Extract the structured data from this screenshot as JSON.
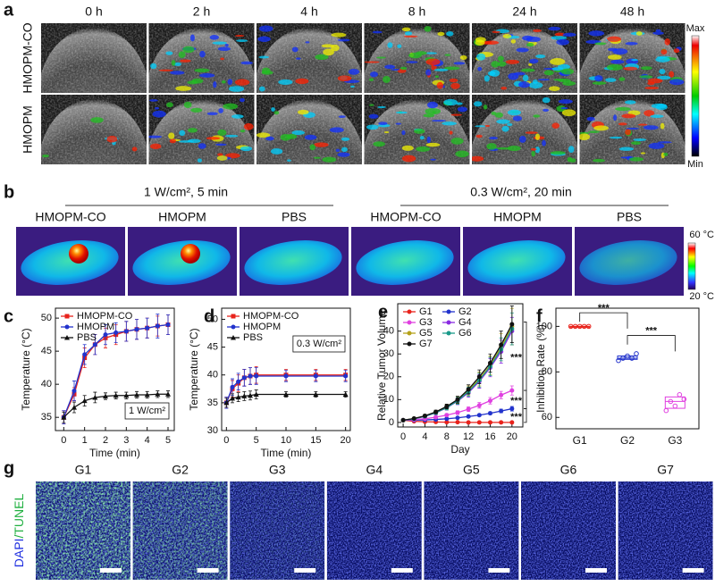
{
  "panel_a": {
    "label": "a",
    "columns": [
      "0 h",
      "2 h",
      "4 h",
      "8 h",
      "24 h",
      "48 h"
    ],
    "rows": [
      "HMOPM-CO",
      "HMOPM"
    ],
    "colorbar": {
      "max": "Max",
      "min": "Min"
    }
  },
  "panel_b": {
    "label": "b",
    "conditions": [
      {
        "title": "1 W/cm², 5 min",
        "groups": [
          "HMOPM-CO",
          "HMOPM",
          "PBS"
        ]
      },
      {
        "title": "0.3 W/cm², 20 min",
        "groups": [
          "HMOPM-CO",
          "HMOPM",
          "PBS"
        ]
      }
    ],
    "colorbar": {
      "max": "60 °C",
      "min": "20 °C"
    }
  },
  "panel_g": {
    "label": "g",
    "columns": [
      "G1",
      "G2",
      "G3",
      "G4",
      "G5",
      "G6",
      "G7"
    ],
    "stain": [
      "DAPI",
      "/TUNEL"
    ]
  },
  "chart_data": [
    {
      "type": "line",
      "panel_label": "c",
      "x_label": "Time (min)",
      "y_label": "Temperature (°C)",
      "x": [
        0,
        0.5,
        1,
        1.5,
        2,
        2.5,
        3,
        3.5,
        4,
        4.5,
        5
      ],
      "xlim": [
        -0.4,
        5.3
      ],
      "xticks": [
        0,
        1,
        2,
        3,
        4,
        5
      ],
      "ylim": [
        33,
        51.5
      ],
      "yticks": [
        35,
        40,
        45,
        50
      ],
      "legend": "upper left",
      "annotations": [
        "1 W/cm²"
      ],
      "series": [
        {
          "name": "HMOPM-CO",
          "color": "#e8221b",
          "marker": "square",
          "values": [
            35,
            38.5,
            44,
            46,
            47,
            47.5,
            48,
            48.3,
            48.5,
            48.8,
            49
          ],
          "errors": [
            1,
            1,
            1.5,
            1.5,
            1.5,
            1.5,
            1.5,
            1.5,
            1.5,
            1.5,
            1.5
          ]
        },
        {
          "name": "HMOPM",
          "color": "#2233cc",
          "marker": "circle",
          "values": [
            35,
            39,
            44.5,
            46,
            47.5,
            47.8,
            48,
            48.3,
            48.5,
            48.8,
            49
          ],
          "errors": [
            1,
            1.5,
            1.5,
            1.5,
            1.5,
            1.5,
            1.5,
            1.5,
            1.5,
            1.8,
            1.5
          ]
        },
        {
          "name": "PBS",
          "color": "#111111",
          "marker": "triangle",
          "values": [
            35,
            36.5,
            37.5,
            38,
            38.2,
            38.3,
            38.3,
            38.4,
            38.4,
            38.5,
            38.5
          ],
          "errors": [
            0.8,
            0.8,
            0.8,
            0.8,
            0.5,
            0.5,
            0.5,
            0.5,
            0.5,
            0.5,
            0.5
          ]
        }
      ]
    },
    {
      "type": "line",
      "panel_label": "d",
      "x_label": "Time (min)",
      "y_label": "Temperature (°C)",
      "x": [
        0,
        1,
        2,
        3,
        4,
        5,
        10,
        15,
        20
      ],
      "xlim": [
        -0.8,
        20.8
      ],
      "xticks": [
        0,
        5,
        10,
        15,
        20
      ],
      "ylim": [
        30,
        52
      ],
      "yticks": [
        30,
        35,
        40,
        45,
        50
      ],
      "legend": "upper left",
      "annotations": [
        "0.3 W/cm²"
      ],
      "series": [
        {
          "name": "HMOPM-CO",
          "color": "#e8221b",
          "marker": "square",
          "values": [
            35,
            37.5,
            38.5,
            39.5,
            39.8,
            40,
            40,
            40,
            40
          ],
          "errors": [
            1,
            1.5,
            1.5,
            1.5,
            1.5,
            1.5,
            1,
            1,
            1
          ]
        },
        {
          "name": "HMOPM",
          "color": "#2233cc",
          "marker": "circle",
          "values": [
            35,
            37.8,
            38.8,
            39.5,
            39.8,
            39.8,
            39.8,
            39.8,
            39.8
          ],
          "errors": [
            1,
            1.5,
            1.5,
            1.5,
            1.5,
            1.5,
            1,
            1,
            1
          ]
        },
        {
          "name": "PBS",
          "color": "#111111",
          "marker": "triangle",
          "values": [
            35,
            35.8,
            36,
            36.2,
            36.3,
            36.5,
            36.5,
            36.5,
            36.5
          ],
          "errors": [
            0.8,
            0.8,
            0.8,
            0.8,
            0.8,
            0.8,
            0.5,
            0.5,
            0.5
          ]
        }
      ]
    },
    {
      "type": "line",
      "panel_label": "e",
      "x_label": "Day",
      "y_label": "Relative Tumor Volume",
      "x": [
        0,
        2,
        4,
        6,
        8,
        10,
        12,
        14,
        16,
        18,
        20
      ],
      "xlim": [
        -1,
        22
      ],
      "xticks": [
        0,
        4,
        8,
        12,
        16,
        20
      ],
      "ylim": [
        -2,
        52
      ],
      "yticks": [
        0,
        10,
        20,
        30,
        40
      ],
      "legend": "upper left",
      "legend_columns": 2,
      "annotations": [
        "***",
        "***",
        "***"
      ],
      "series": [
        {
          "name": "G1",
          "color": "#e8221b",
          "marker": "circle",
          "values": [
            1,
            0.5,
            0.3,
            0.2,
            0.1,
            0.1,
            0,
            0,
            0,
            0,
            0
          ],
          "errors": [
            0.2,
            0.2,
            0.2,
            0.2,
            0.1,
            0.1,
            0,
            0,
            0,
            0,
            0
          ]
        },
        {
          "name": "G2",
          "color": "#2233cc",
          "marker": "circle",
          "values": [
            1,
            1,
            1.1,
            1.3,
            1.6,
            2,
            2.6,
            3.2,
            4,
            5,
            6
          ],
          "errors": [
            0.2,
            0.2,
            0.2,
            0.3,
            0.3,
            0.4,
            0.5,
            0.5,
            0.6,
            0.8,
            1
          ]
        },
        {
          "name": "G3",
          "color": "#e040e0",
          "marker": "circle",
          "values": [
            1,
            1.2,
            1.6,
            2.3,
            3.2,
            4.3,
            5.8,
            7.5,
            9.5,
            12,
            14
          ],
          "errors": [
            0.2,
            0.3,
            0.4,
            0.5,
            0.6,
            0.8,
            1,
            1.2,
            1.4,
            1.6,
            2
          ]
        },
        {
          "name": "G4",
          "color": "#8a2be2",
          "marker": "circle",
          "values": [
            1,
            1.6,
            2.6,
            4.2,
            6.4,
            9.3,
            13,
            18,
            24,
            31,
            40
          ],
          "errors": [
            0.2,
            0.4,
            0.6,
            0.8,
            1,
            1.5,
            2,
            3,
            4,
            5,
            6
          ]
        },
        {
          "name": "G5",
          "color": "#b5a21a",
          "marker": "circle",
          "values": [
            1,
            1.7,
            2.8,
            4.5,
            6.8,
            9.8,
            14,
            19,
            25,
            33,
            42
          ],
          "errors": [
            0.2,
            0.4,
            0.6,
            0.8,
            1,
            1.5,
            2,
            3,
            4,
            6,
            8
          ]
        },
        {
          "name": "G6",
          "color": "#1a9a8a",
          "marker": "circle",
          "values": [
            1,
            1.6,
            2.7,
            4.3,
            6.5,
            9.5,
            13.5,
            18.5,
            24.5,
            32,
            41
          ],
          "errors": [
            0.2,
            0.4,
            0.6,
            0.8,
            1,
            1.5,
            2,
            3,
            4,
            5,
            7
          ]
        },
        {
          "name": "G7",
          "color": "#111111",
          "marker": "circle",
          "values": [
            1,
            1.7,
            2.9,
            4.6,
            7,
            10,
            14.5,
            20,
            26,
            34,
            43
          ],
          "errors": [
            0.2,
            0.4,
            0.6,
            0.8,
            1,
            1.5,
            2,
            3,
            4,
            6,
            8
          ]
        }
      ]
    },
    {
      "type": "box",
      "panel_label": "f",
      "x_label": null,
      "y_label": "Inhibition Rate (%)",
      "categories": [
        "G1",
        "G2",
        "G3"
      ],
      "colors": [
        "#e8221b",
        "#2233cc",
        "#e040e0"
      ],
      "ylim": [
        55,
        108
      ],
      "yticks": [
        60,
        80,
        100
      ],
      "annotations": [
        "***",
        "***"
      ],
      "groups": [
        {
          "values": [
            100,
            100,
            100,
            100,
            100
          ],
          "box": {
            "q1": 100,
            "median": 100,
            "q3": 100
          }
        },
        {
          "values": [
            85,
            86,
            87,
            86,
            88
          ],
          "box": {
            "q1": 85.5,
            "median": 86,
            "q3": 87
          }
        },
        {
          "values": [
            63,
            67,
            65,
            70,
            68
          ],
          "box": {
            "q1": 64,
            "median": 67,
            "q3": 69
          }
        }
      ]
    }
  ]
}
